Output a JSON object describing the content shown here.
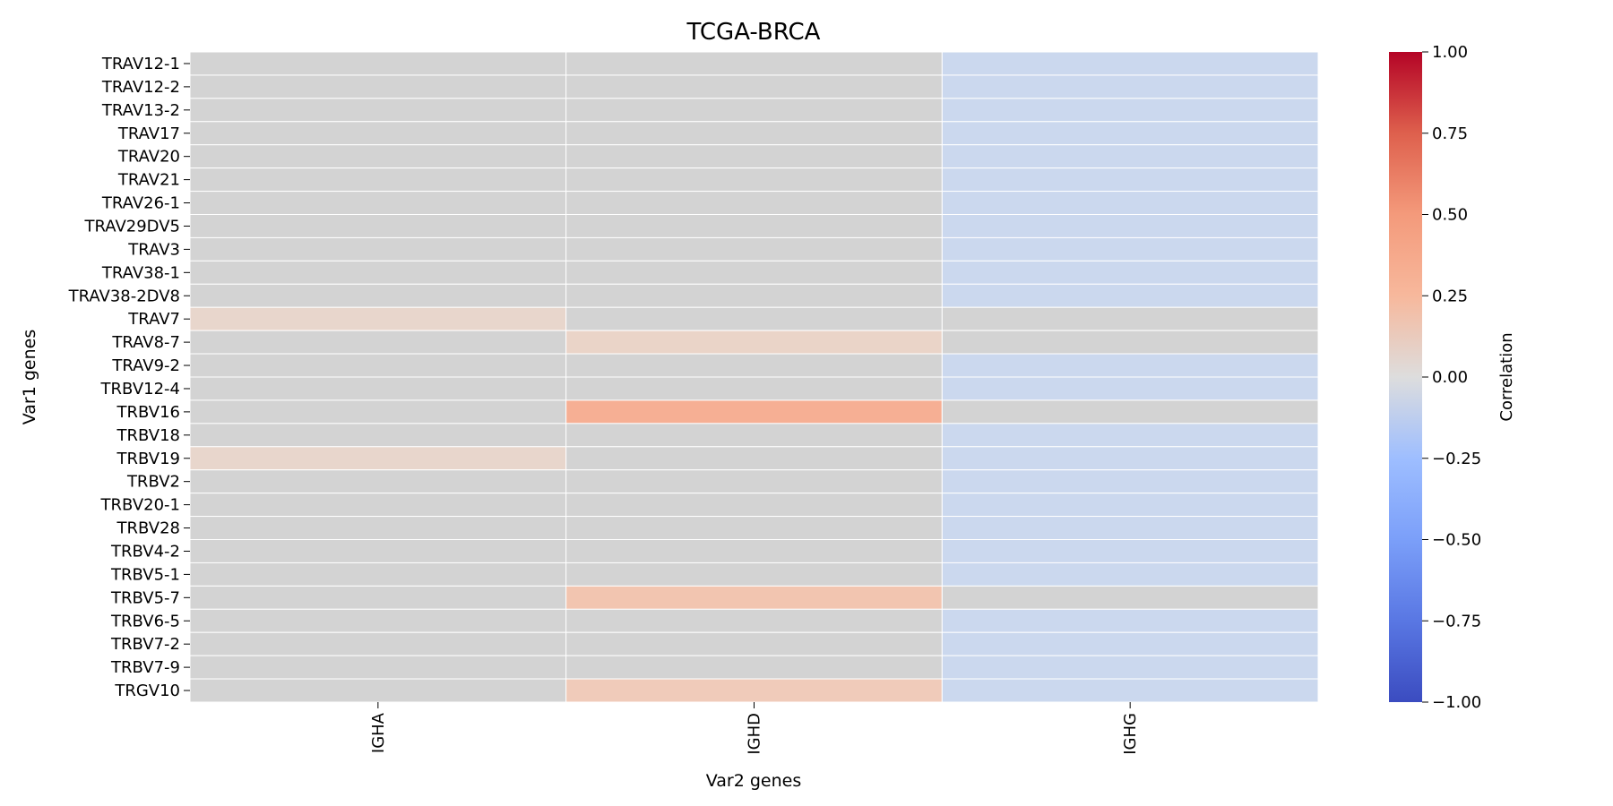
{
  "chart_data": {
    "type": "heatmap",
    "title": "TCGA-BRCA",
    "xlabel": "Var2 genes",
    "ylabel": "Var1 genes",
    "columns": [
      "IGHA",
      "IGHD",
      "IGHG"
    ],
    "rows": [
      "TRAV12-1",
      "TRAV12-2",
      "TRAV13-2",
      "TRAV17",
      "TRAV20",
      "TRAV21",
      "TRAV26-1",
      "TRAV29DV5",
      "TRAV3",
      "TRAV38-1",
      "TRAV38-2DV8",
      "TRAV7",
      "TRAV8-7",
      "TRAV9-2",
      "TRBV12-4",
      "TRBV16",
      "TRBV18",
      "TRBV19",
      "TRBV2",
      "TRBV20-1",
      "TRBV28",
      "TRBV4-2",
      "TRBV5-1",
      "TRBV5-7",
      "TRBV6-5",
      "TRBV7-2",
      "TRBV7-9",
      "TRGV10"
    ],
    "values": [
      [
        0.0,
        0.0,
        -0.12
      ],
      [
        0.0,
        0.0,
        -0.12
      ],
      [
        0.0,
        0.0,
        -0.12
      ],
      [
        0.0,
        0.0,
        -0.12
      ],
      [
        0.0,
        0.0,
        -0.12
      ],
      [
        0.0,
        0.0,
        -0.12
      ],
      [
        0.0,
        0.0,
        -0.12
      ],
      [
        0.0,
        0.0,
        -0.12
      ],
      [
        0.0,
        0.0,
        -0.12
      ],
      [
        0.0,
        0.0,
        -0.12
      ],
      [
        0.0,
        0.0,
        -0.12
      ],
      [
        0.12,
        0.0,
        0.0
      ],
      [
        0.0,
        0.14,
        0.0
      ],
      [
        0.0,
        0.0,
        -0.12
      ],
      [
        0.0,
        0.0,
        -0.12
      ],
      [
        0.0,
        0.47,
        0.0
      ],
      [
        0.0,
        0.0,
        -0.12
      ],
      [
        0.12,
        0.0,
        -0.12
      ],
      [
        0.0,
        0.0,
        -0.12
      ],
      [
        0.0,
        0.0,
        -0.12
      ],
      [
        0.0,
        0.0,
        -0.12
      ],
      [
        0.0,
        0.0,
        -0.12
      ],
      [
        0.0,
        0.0,
        -0.12
      ],
      [
        0.0,
        0.28,
        0.0
      ],
      [
        0.0,
        0.0,
        -0.12
      ],
      [
        0.0,
        0.0,
        -0.12
      ],
      [
        0.0,
        0.0,
        -0.12
      ],
      [
        0.0,
        0.22,
        -0.12
      ]
    ],
    "vmin": -1.0,
    "vmax": 1.0,
    "colormap": "coolwarm",
    "colorbar": {
      "label": "Correlation",
      "ticks": [
        1.0,
        0.75,
        0.5,
        0.25,
        0.0,
        -0.25,
        -0.5,
        -0.75,
        -1.0
      ],
      "tick_labels": [
        "1.00",
        "0.75",
        "0.50",
        "0.25",
        "0.00",
        "−0.25",
        "−0.50",
        "−0.75",
        "−1.00"
      ]
    },
    "grid": false,
    "cell_gap_color": "#ffffff"
  }
}
